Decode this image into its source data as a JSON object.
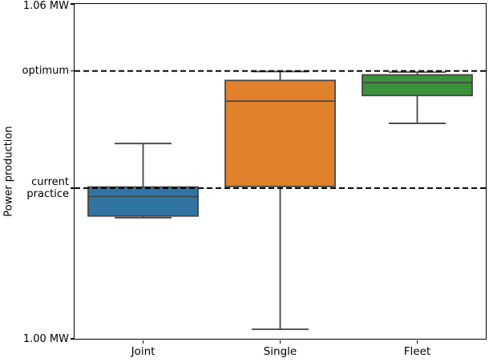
{
  "chart_data": {
    "type": "boxplot",
    "title": "",
    "xlabel": "",
    "ylabel": "Power production",
    "categories": [
      "Joint",
      "Single",
      "Fleet"
    ],
    "ylim": [
      1.0,
      1.06
    ],
    "y_unit": "MW",
    "grid": false,
    "background": "#ffffff",
    "edge_color": "#464646",
    "yticks": [
      {
        "value": 1.06,
        "label": "1.06 MW"
      },
      {
        "value": 1.048,
        "label": "optimum"
      },
      {
        "value": 1.027,
        "label": "current\npractice"
      },
      {
        "value": 1.0,
        "label": "1.00 MW"
      }
    ],
    "reference_lines": [
      {
        "value": 1.048,
        "name": "optimum",
        "style": "dashed",
        "color": "#000000"
      },
      {
        "value": 1.027,
        "name": "current practice",
        "style": "dashed",
        "color": "#000000"
      }
    ],
    "series": [
      {
        "name": "Joint",
        "color": "#3274a1",
        "whisker_low": 1.0217,
        "q1": 1.022,
        "median": 1.0255,
        "q3": 1.0272,
        "whisker_high": 1.035
      },
      {
        "name": "Single",
        "color": "#e1812c",
        "whisker_low": 1.0017,
        "q1": 1.0273,
        "median": 1.0426,
        "q3": 1.0463,
        "whisker_high": 1.0479
      },
      {
        "name": "Fleet",
        "color": "#3a923a",
        "whisker_low": 1.0386,
        "q1": 1.0436,
        "median": 1.0459,
        "q3": 1.0473,
        "whisker_high": 1.0478
      }
    ]
  }
}
